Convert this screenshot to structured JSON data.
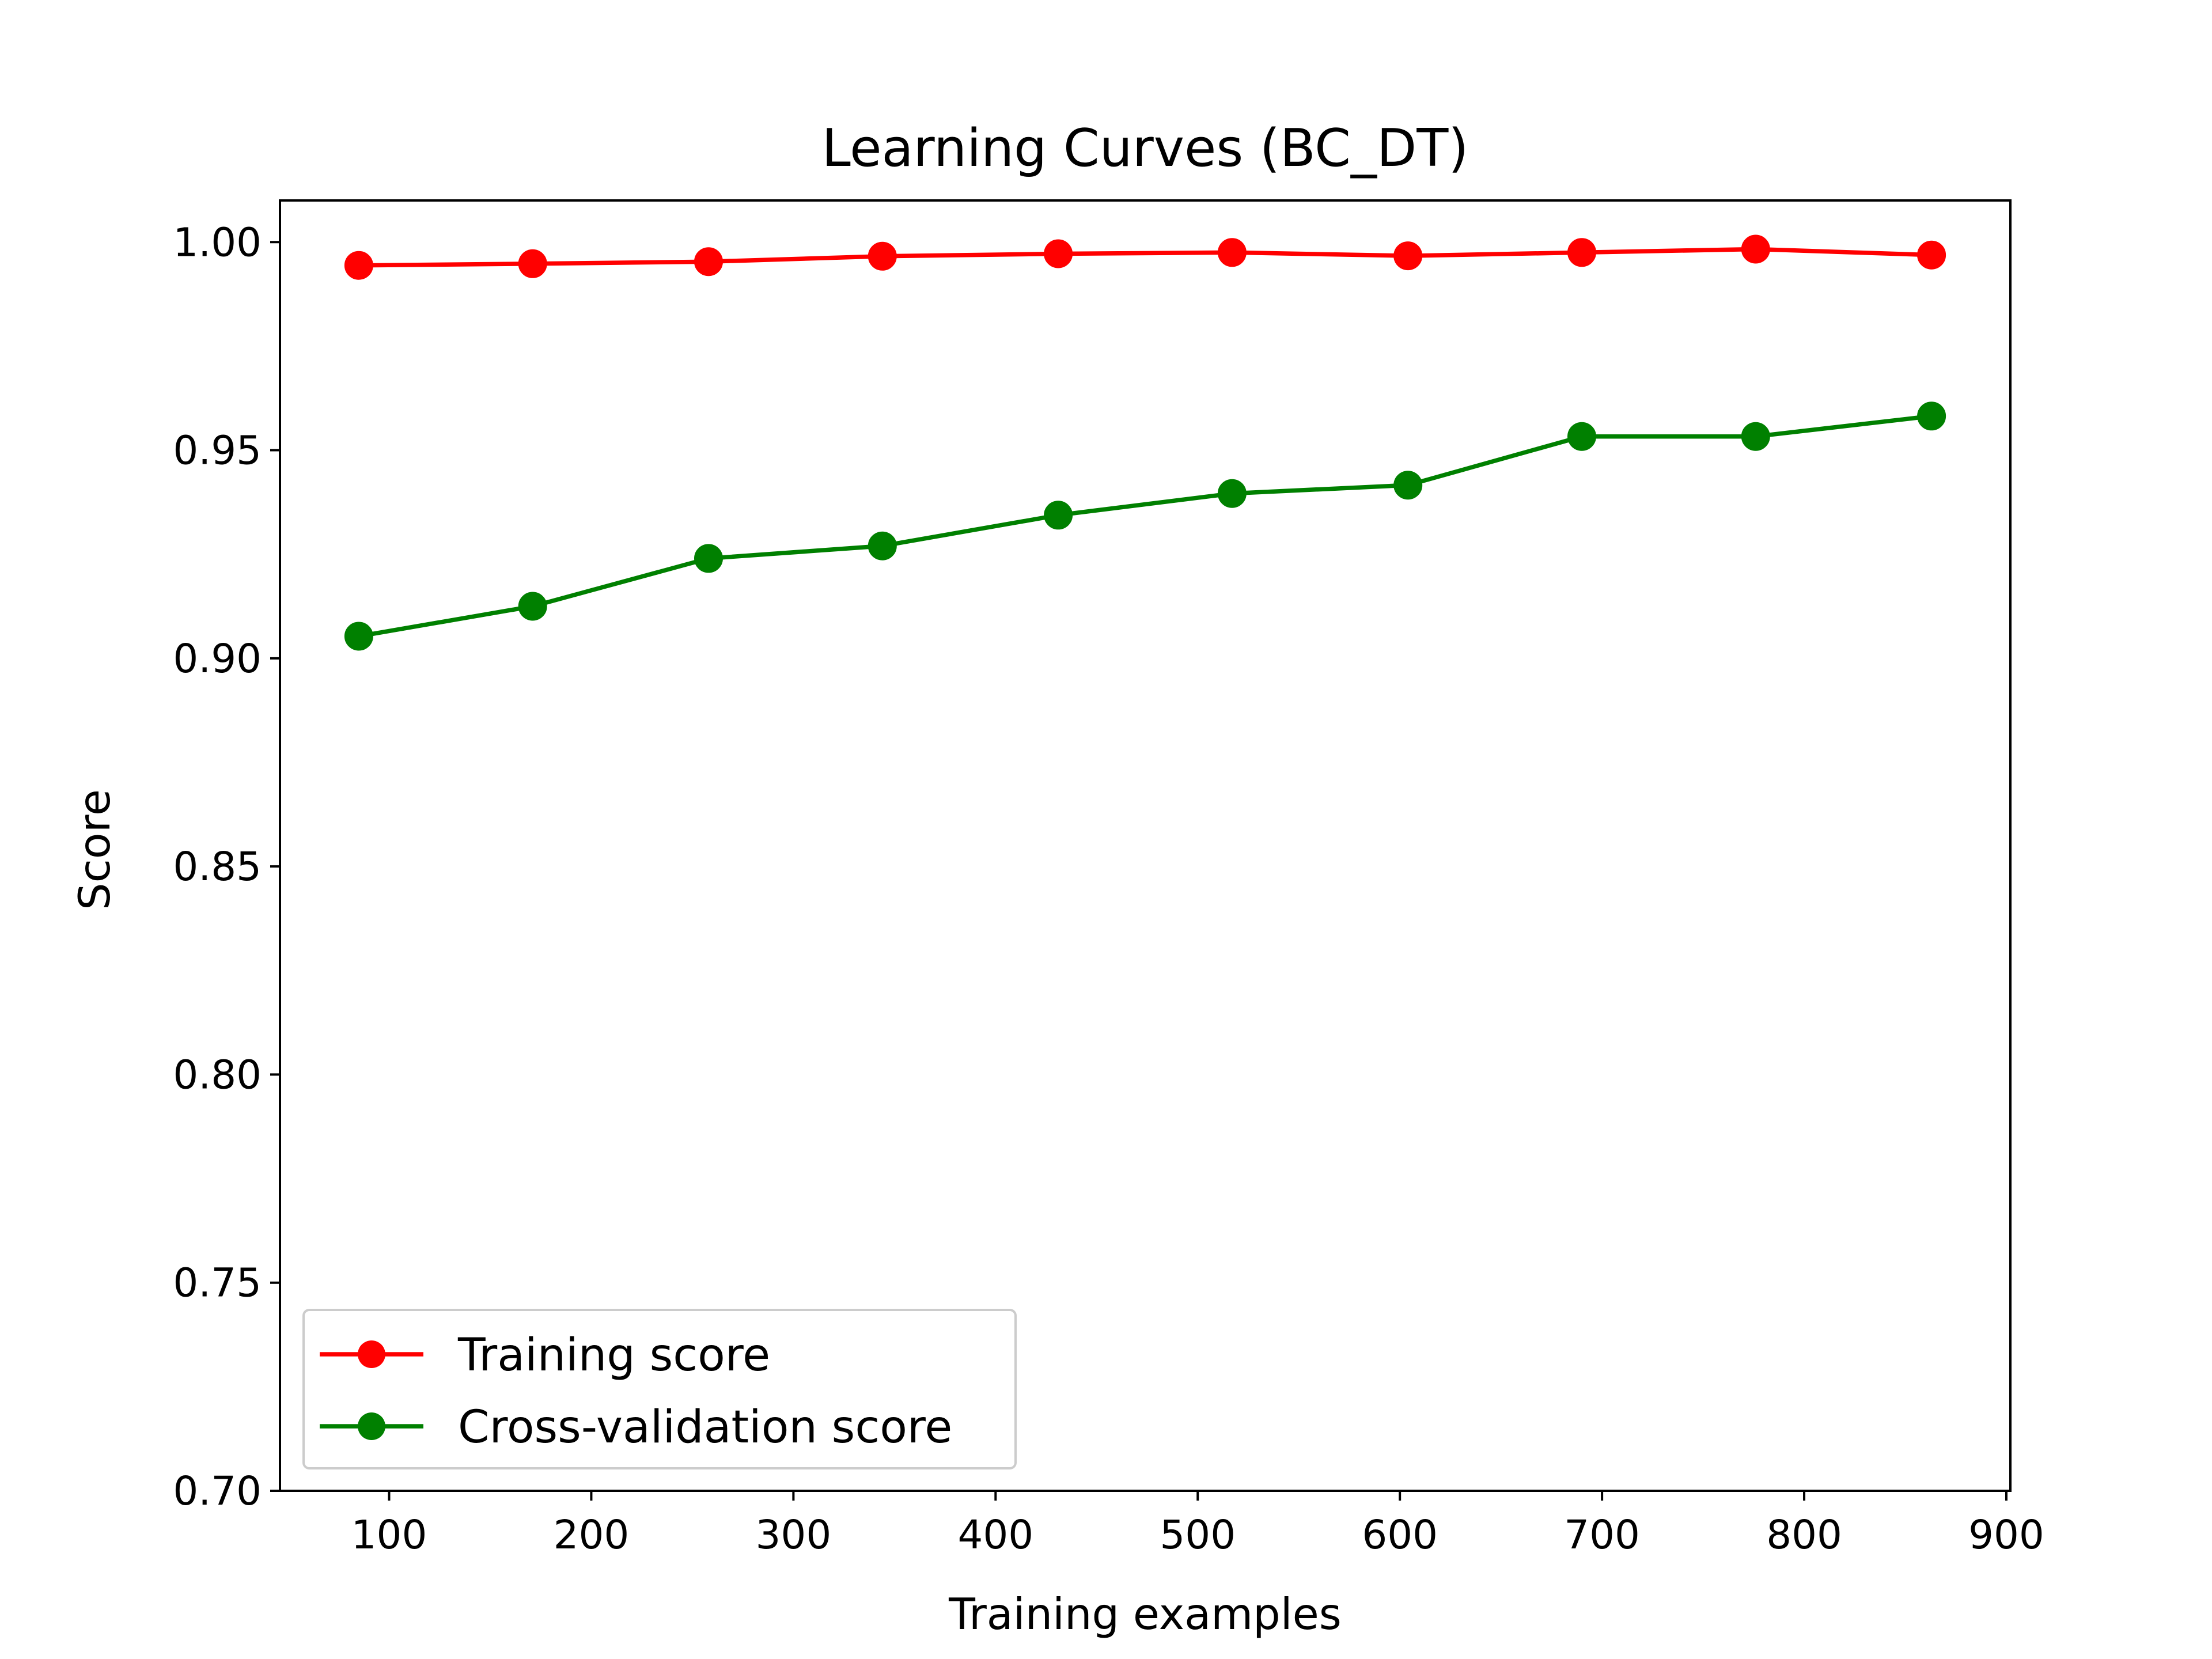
{
  "chart_data": {
    "type": "line",
    "title": "Learning Curves (BC_DT)",
    "xlabel": "Training examples",
    "ylabel": "Score",
    "x": [
      85,
      171,
      258,
      344,
      431,
      517,
      604,
      690,
      776,
      863
    ],
    "xlim": [
      46,
      902
    ],
    "ylim": [
      0.7,
      1.01
    ],
    "xticks": [
      100,
      200,
      300,
      400,
      500,
      600,
      700,
      800,
      900
    ],
    "xtick_labels": [
      "100",
      "200",
      "300",
      "400",
      "500",
      "600",
      "700",
      "800",
      "900"
    ],
    "yticks": [
      0.7,
      0.75,
      0.8,
      0.85,
      0.9,
      0.95,
      1.0
    ],
    "ytick_labels": [
      "0.70",
      "0.75",
      "0.80",
      "0.85",
      "0.90",
      "0.95",
      "1.00"
    ],
    "grid": false,
    "legend_position": "lower-left",
    "series": [
      {
        "name": "Training score",
        "color": "#ff0000",
        "marker": "circle",
        "values": [
          0.9944,
          0.9948,
          0.9953,
          0.9966,
          0.9972,
          0.9975,
          0.9967,
          0.9975,
          0.9983,
          0.9969
        ]
      },
      {
        "name": "Cross-validation score",
        "color": "#008000",
        "marker": "circle",
        "values": [
          0.9053,
          0.9125,
          0.924,
          0.927,
          0.9344,
          0.9396,
          0.9416,
          0.9533,
          0.9533,
          0.9582
        ]
      }
    ]
  }
}
